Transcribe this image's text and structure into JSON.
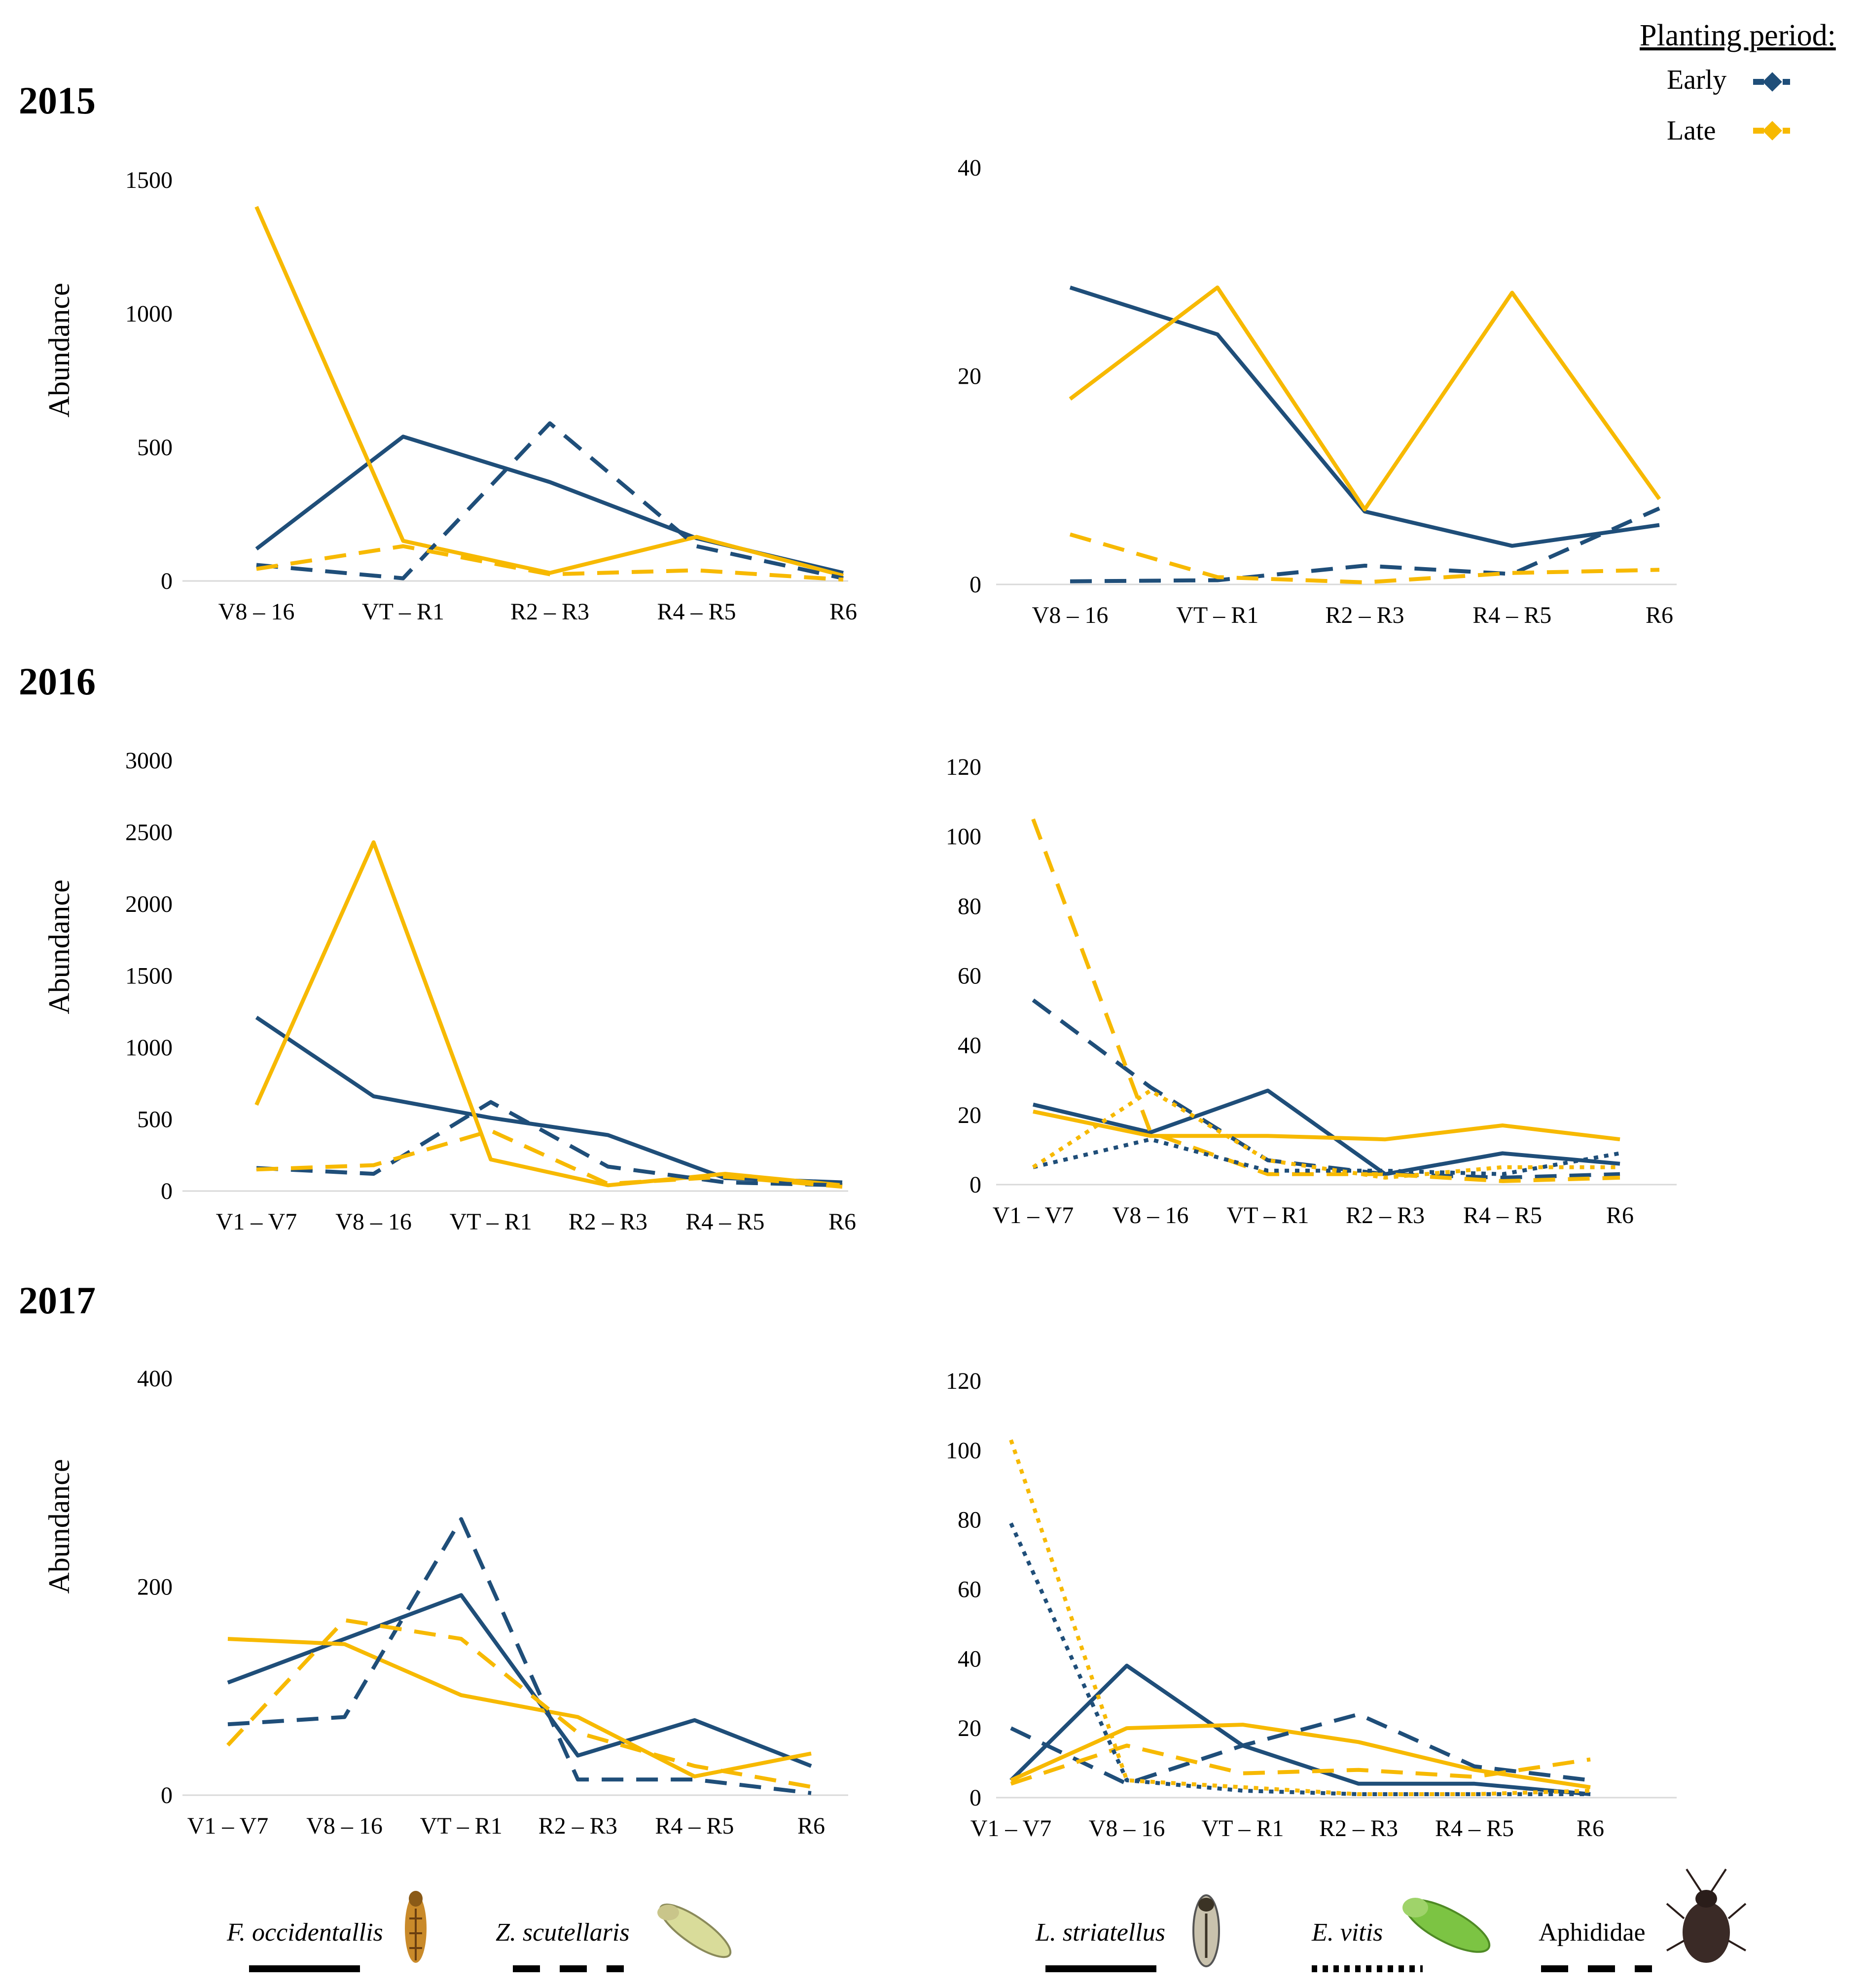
{
  "colors": {
    "early": "#1f4e79",
    "late": "#f7b900",
    "axis": "#d9d9d9"
  },
  "legend": {
    "title": "Planting period:",
    "items": [
      {
        "label": "Early",
        "series": "early"
      },
      {
        "label": "Late",
        "series": "late"
      }
    ]
  },
  "years": [
    "2015",
    "2016",
    "2017"
  ],
  "species_legend": [
    {
      "name": "F. occidentallis",
      "style": "solid",
      "italic": true,
      "icon": "thrips-icon"
    },
    {
      "name": "Z. scutellaris",
      "style": "dashed",
      "italic": true,
      "icon": "leafhopper-icon"
    },
    {
      "name": "L. striatellus",
      "style": "solid",
      "italic": true,
      "icon": "planthopper-icon"
    },
    {
      "name": "E. vitis",
      "style": "dotted",
      "italic": true,
      "icon": "green-leafhopper-icon"
    },
    {
      "name": "Aphididae",
      "style": "dashed",
      "italic": false,
      "icon": "aphid-icon"
    }
  ],
  "chart_data": [
    {
      "id": "2015-left",
      "year": "2015",
      "type": "line",
      "ylabel": "Abundance",
      "ylim": [
        0,
        1500
      ],
      "yticks": [
        0,
        500,
        1000,
        1500
      ],
      "categories": [
        "V8 – 16",
        "VT – R1",
        "R2 – R3",
        "R4 – R5",
        "R6"
      ],
      "series": [
        {
          "species": "F. occidentallis",
          "period": "Early",
          "style": "solid",
          "values": [
            120,
            540,
            370,
            160,
            30
          ]
        },
        {
          "species": "F. occidentallis",
          "period": "Late",
          "style": "solid",
          "values": [
            1400,
            150,
            30,
            165,
            20
          ]
        },
        {
          "species": "Z. scutellaris",
          "period": "Early",
          "style": "dashed",
          "values": [
            60,
            10,
            590,
            130,
            10
          ]
        },
        {
          "species": "Z. scutellaris",
          "period": "Late",
          "style": "dashed",
          "values": [
            45,
            130,
            25,
            40,
            5
          ]
        }
      ]
    },
    {
      "id": "2015-right",
      "year": "2015",
      "type": "line",
      "ylabel": "",
      "ylim": [
        0,
        40
      ],
      "yticks": [
        0,
        20,
        40
      ],
      "categories": [
        "V8 – 16",
        "VT – R1",
        "R2 – R3",
        "R4 – R5",
        "R6"
      ],
      "series": [
        {
          "species": "L. striatellus",
          "period": "Early",
          "style": "solid",
          "values": [
            28.5,
            24,
            7,
            3.7,
            5.7
          ]
        },
        {
          "species": "L. striatellus",
          "period": "Late",
          "style": "solid",
          "values": [
            17.8,
            28.5,
            7.2,
            28,
            8.2
          ]
        },
        {
          "species": "Aphididae",
          "period": "Early",
          "style": "dashed",
          "values": [
            0.3,
            0.4,
            1.8,
            1,
            7.3
          ]
        },
        {
          "species": "Aphididae",
          "period": "Late",
          "style": "dashed",
          "values": [
            4.8,
            0.7,
            0.2,
            1.1,
            1.4
          ]
        }
      ]
    },
    {
      "id": "2016-left",
      "year": "2016",
      "type": "line",
      "ylabel": "Abundance",
      "ylim": [
        0,
        3000
      ],
      "yticks": [
        0,
        500,
        1000,
        1500,
        2000,
        2500,
        3000
      ],
      "categories": [
        "V1 – V7",
        "V8 – 16",
        "VT – R1",
        "R2 – R3",
        "R4 – R5",
        "R6"
      ],
      "series": [
        {
          "species": "F. occidentallis",
          "period": "Early",
          "style": "solid",
          "values": [
            1210,
            660,
            510,
            390,
            90,
            60
          ]
        },
        {
          "species": "F. occidentallis",
          "period": "Late",
          "style": "solid",
          "values": [
            600,
            2430,
            220,
            40,
            120,
            40
          ]
        },
        {
          "species": "Z. scutellaris",
          "period": "Early",
          "style": "dashed",
          "values": [
            160,
            120,
            620,
            170,
            60,
            40
          ]
        },
        {
          "species": "Z. scutellaris",
          "period": "Late",
          "style": "dashed",
          "values": [
            150,
            180,
            420,
            50,
            100,
            30
          ]
        }
      ]
    },
    {
      "id": "2016-right",
      "year": "2016",
      "type": "line",
      "ylabel": "",
      "ylim": [
        0,
        120
      ],
      "yticks": [
        0,
        20,
        40,
        60,
        80,
        100,
        120
      ],
      "categories": [
        "V1 – V7",
        "V8 – 16",
        "VT – R1",
        "R2 – R3",
        "R4 – R5",
        "R6"
      ],
      "series": [
        {
          "species": "L. striatellus",
          "period": "Early",
          "style": "solid",
          "values": [
            23,
            15,
            27,
            3,
            9,
            6
          ]
        },
        {
          "species": "L. striatellus",
          "period": "Late",
          "style": "solid",
          "values": [
            21,
            14,
            14,
            13,
            17,
            13
          ]
        },
        {
          "species": "Aphididae",
          "period": "Early",
          "style": "dashed",
          "values": [
            53,
            28,
            7,
            3,
            2,
            3
          ]
        },
        {
          "species": "Aphididae",
          "period": "Late",
          "style": "dashed",
          "values": [
            105,
            15,
            3,
            3,
            1,
            2
          ]
        },
        {
          "species": "E. vitis",
          "period": "Early",
          "style": "dotted",
          "values": [
            5,
            13,
            4,
            4,
            3,
            9
          ]
        },
        {
          "species": "E. vitis",
          "period": "Late",
          "style": "dotted",
          "values": [
            5,
            27,
            7,
            2,
            5,
            5
          ]
        }
      ]
    },
    {
      "id": "2017-left",
      "year": "2017",
      "type": "line",
      "ylabel": "Abundance",
      "ylim": [
        0,
        400
      ],
      "yticks": [
        0,
        200,
        400
      ],
      "categories": [
        "V1 – V7",
        "V8 – 16",
        "VT – R1",
        "R2 – R3",
        "R4 – R5",
        "R6"
      ],
      "series": [
        {
          "species": "F. occidentallis",
          "period": "Early",
          "style": "solid",
          "values": [
            108,
            150,
            192,
            38,
            72,
            28
          ]
        },
        {
          "species": "F. occidentallis",
          "period": "Late",
          "style": "solid",
          "values": [
            150,
            145,
            96,
            75,
            18,
            40
          ]
        },
        {
          "species": "Z. scutellaris",
          "period": "Early",
          "style": "dashed",
          "values": [
            68,
            75,
            265,
            15,
            15,
            2
          ]
        },
        {
          "species": "Z. scutellaris",
          "period": "Late",
          "style": "dashed",
          "values": [
            48,
            168,
            150,
            60,
            28,
            8
          ]
        }
      ]
    },
    {
      "id": "2017-right",
      "year": "2017",
      "type": "line",
      "ylabel": "",
      "ylim": [
        0,
        120
      ],
      "yticks": [
        0,
        20,
        40,
        60,
        80,
        100,
        120
      ],
      "categories": [
        "V1 – V7",
        "V8 – 16",
        "VT – R1",
        "R2 – R3",
        "R4 – R5",
        "R6"
      ],
      "series": [
        {
          "species": "L. striatellus",
          "period": "Early",
          "style": "solid",
          "values": [
            5,
            38,
            15,
            4,
            4,
            1
          ]
        },
        {
          "species": "L. striatellus",
          "period": "Late",
          "style": "solid",
          "values": [
            5,
            20,
            21,
            16,
            8,
            3
          ]
        },
        {
          "species": "Aphididae",
          "period": "Early",
          "style": "dashed",
          "values": [
            20,
            4,
            15,
            24,
            9,
            5
          ]
        },
        {
          "species": "Aphididae",
          "period": "Late",
          "style": "dashed",
          "values": [
            4,
            15,
            7,
            8,
            6,
            11
          ]
        },
        {
          "species": "E. vitis",
          "period": "Early",
          "style": "dotted",
          "values": [
            79,
            5,
            2,
            1,
            1,
            1
          ]
        },
        {
          "species": "E. vitis",
          "period": "Late",
          "style": "dotted",
          "values": [
            103,
            5,
            3,
            1,
            1,
            2
          ]
        }
      ]
    }
  ]
}
